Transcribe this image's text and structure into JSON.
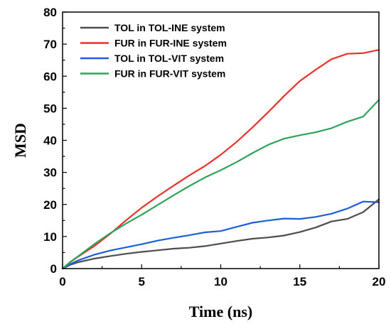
{
  "chart_data": {
    "type": "line",
    "xlabel": "Time (ns)",
    "ylabel": "MSD",
    "xlim": [
      0,
      20
    ],
    "ylim": [
      0,
      80
    ],
    "xticks": [
      0,
      5,
      10,
      15,
      20
    ],
    "yticks": [
      0,
      10,
      20,
      30,
      40,
      50,
      60,
      70,
      80
    ],
    "grid": false,
    "legend_position": "top-left",
    "x": [
      0,
      0.5,
      1,
      2,
      3,
      4,
      5,
      6,
      7,
      8,
      9,
      10,
      11,
      12,
      13,
      14,
      15,
      16,
      17,
      18,
      19,
      20
    ],
    "series": [
      {
        "name": "TOL in TOL-INE system",
        "color": "#4d4d4d",
        "values": [
          0,
          1.2,
          2.0,
          3.1,
          3.9,
          4.6,
          5.2,
          5.7,
          6.2,
          6.5,
          7.0,
          7.8,
          8.6,
          9.3,
          9.7,
          10.3,
          11.4,
          12.8,
          14.7,
          15.5,
          17.6,
          21.6
        ]
      },
      {
        "name": "FUR in FUR-INE system",
        "color": "#e8312a",
        "values": [
          0,
          2.0,
          3.8,
          7.0,
          10.8,
          15.0,
          19.0,
          22.5,
          25.8,
          29.0,
          32.0,
          35.5,
          39.5,
          44.0,
          48.8,
          53.8,
          58.5,
          62.0,
          65.3,
          67.0,
          67.2,
          68.2
        ]
      },
      {
        "name": "TOL in TOL-VIT system",
        "color": "#1f5fd6",
        "values": [
          0,
          1.4,
          2.6,
          4.3,
          5.6,
          6.6,
          7.6,
          8.7,
          9.6,
          10.4,
          11.3,
          11.7,
          13.0,
          14.3,
          15.0,
          15.6,
          15.5,
          16.1,
          17.1,
          18.7,
          20.9,
          20.7
        ]
      },
      {
        "name": "FUR in FUR-VIT system",
        "color": "#2ea35a",
        "values": [
          0,
          2.1,
          3.9,
          7.6,
          11.0,
          14.0,
          16.8,
          19.8,
          22.8,
          25.7,
          28.4,
          30.7,
          33.2,
          36.0,
          38.6,
          40.5,
          41.6,
          42.5,
          43.8,
          45.8,
          47.4,
          52.6
        ]
      }
    ]
  }
}
